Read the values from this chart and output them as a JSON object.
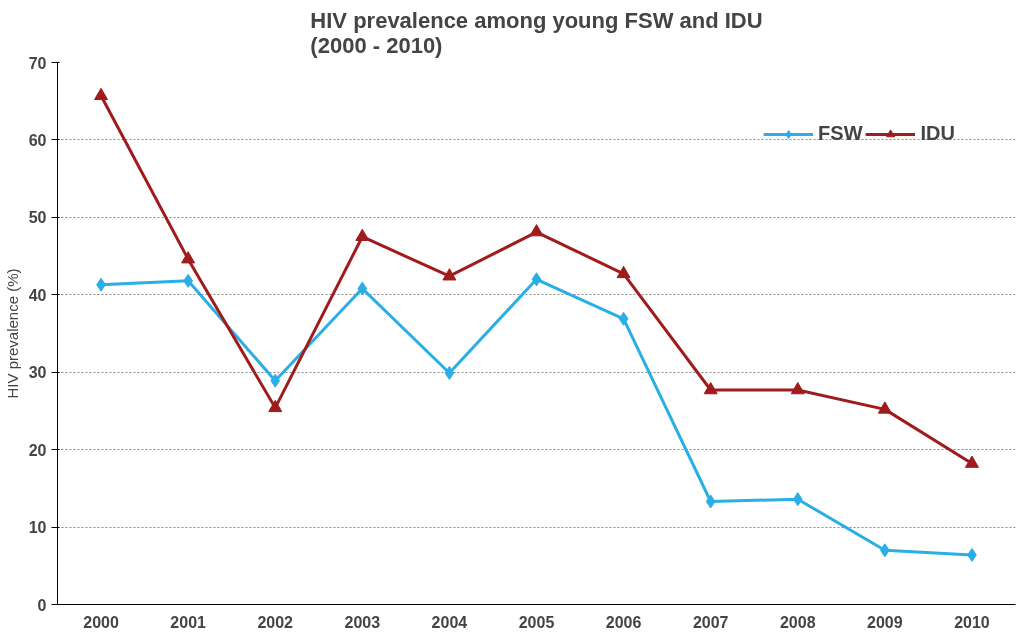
{
  "chart_data": {
    "type": "line",
    "title": "HIV prevalence among young FSW and IDU\n(2000 - 2010)",
    "ylabel": "HIV prevalence (%)",
    "categories": [
      "2000",
      "2001",
      "2002",
      "2003",
      "2004",
      "2005",
      "2006",
      "2007",
      "2008",
      "2009",
      "2010"
    ],
    "series": [
      {
        "name": "FSW",
        "color": "#2aaee6",
        "marker": "diamond",
        "values": [
          41.3,
          41.8,
          28.9,
          40.8,
          29.9,
          42,
          36.9,
          13.3,
          13.6,
          7,
          6.4
        ]
      },
      {
        "name": "IDU",
        "color": "#a01c1c",
        "marker": "triangle",
        "values": [
          65.7,
          44.6,
          25.4,
          47.5,
          42.4,
          48.1,
          42.7,
          27.7,
          27.7,
          25.2,
          18.2
        ]
      }
    ],
    "ylim": [
      0,
      70
    ],
    "yticks": [
      0,
      10,
      20,
      30,
      40,
      50,
      60,
      70
    ],
    "grid": "y",
    "legend": "top right",
    "line_style": "solid"
  }
}
